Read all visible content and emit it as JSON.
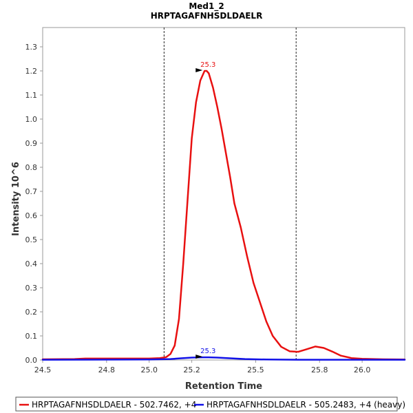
{
  "chart_data": {
    "type": "line",
    "title": "Med1_2",
    "subtitle": "HRPTAGAFNHSDLDAELR",
    "xlabel": "Retention Time",
    "ylabel": "Intensity 10^6",
    "xlim": [
      24.5,
      26.2
    ],
    "ylim": [
      0,
      1.38
    ],
    "x_ticks": [
      24.5,
      24.8,
      25.0,
      25.2,
      25.5,
      25.8,
      26.0
    ],
    "x_tick_labels": [
      "24.5",
      "24.8",
      "25.0",
      "25.2",
      "25.5",
      "25.8",
      "26.0"
    ],
    "y_ticks": [
      0.0,
      0.1,
      0.2,
      0.3,
      0.4,
      0.5,
      0.6,
      0.7,
      0.8,
      0.9,
      1.0,
      1.1,
      1.2,
      1.3
    ],
    "y_tick_labels": [
      "0.0",
      "0.1",
      "0.2",
      "0.3",
      "0.4",
      "0.5",
      "0.6",
      "0.7",
      "0.8",
      "0.9",
      "1.0",
      "1.1",
      "1.2",
      "1.3"
    ],
    "vertical_lines": [
      25.07,
      25.69
    ],
    "legend_position": "bottom",
    "grid": false,
    "series": [
      {
        "name": "HRPTAGAFNHSDLDAELR - 502.7462, +4",
        "color": "#e81010",
        "peak_label": "25.3",
        "peak": {
          "x": 25.27,
          "y": 1.2
        },
        "x": [
          24.5,
          24.65,
          24.7,
          24.9,
          25.0,
          25.05,
          25.08,
          25.1,
          25.12,
          25.14,
          25.16,
          25.18,
          25.2,
          25.22,
          25.24,
          25.26,
          25.27,
          25.28,
          25.3,
          25.32,
          25.34,
          25.36,
          25.38,
          25.4,
          25.43,
          25.46,
          25.49,
          25.52,
          25.55,
          25.58,
          25.62,
          25.66,
          25.7,
          25.74,
          25.78,
          25.82,
          25.86,
          25.9,
          25.95,
          26.0,
          26.1,
          26.2
        ],
        "y": [
          0.003,
          0.004,
          0.006,
          0.006,
          0.006,
          0.008,
          0.012,
          0.025,
          0.06,
          0.17,
          0.4,
          0.66,
          0.92,
          1.07,
          1.16,
          1.2,
          1.2,
          1.19,
          1.13,
          1.05,
          0.96,
          0.86,
          0.76,
          0.65,
          0.55,
          0.43,
          0.32,
          0.24,
          0.16,
          0.1,
          0.055,
          0.036,
          0.034,
          0.045,
          0.056,
          0.05,
          0.035,
          0.018,
          0.008,
          0.005,
          0.003,
          0.002
        ]
      },
      {
        "name": "HRPTAGAFNHSDLDAELR - 505.2483, +4 (heavy)",
        "color": "#1010e8",
        "peak_label": "25.3",
        "peak": {
          "x": 25.27,
          "y": 0.011
        },
        "x": [
          24.5,
          25.0,
          25.1,
          25.15,
          25.2,
          25.25,
          25.28,
          25.32,
          25.38,
          25.45,
          25.55,
          25.7,
          25.9,
          26.2
        ],
        "y": [
          0.001,
          0.002,
          0.004,
          0.007,
          0.01,
          0.011,
          0.011,
          0.01,
          0.007,
          0.004,
          0.002,
          0.001,
          0.001,
          0.001
        ]
      }
    ]
  }
}
